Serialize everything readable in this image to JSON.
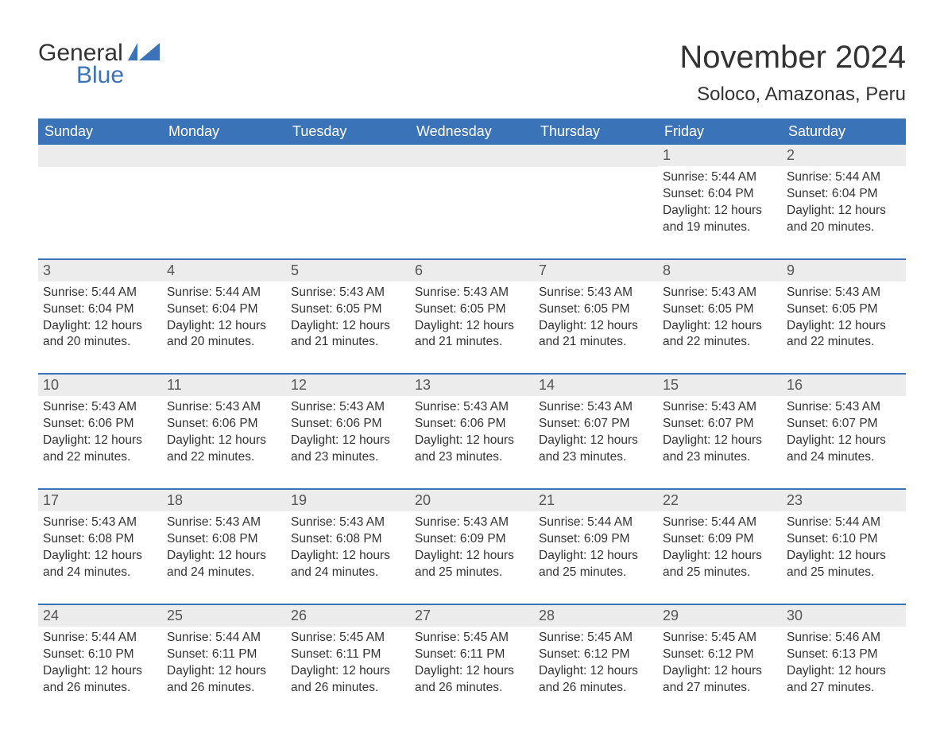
{
  "logo": {
    "word1": "General",
    "word2": "Blue"
  },
  "title": "November 2024",
  "location": "Soloco, Amazonas, Peru",
  "colors": {
    "brand_blue": "#3b73b9",
    "header_bg": "#ececec",
    "text": "#333333",
    "white": "#ffffff"
  },
  "fonts": {
    "family": "Arial",
    "title_size": 40,
    "location_size": 24,
    "weekday_size": 18,
    "daynum_size": 18,
    "body_size": 15.5
  },
  "weekdays": [
    "Sunday",
    "Monday",
    "Tuesday",
    "Wednesday",
    "Thursday",
    "Friday",
    "Saturday"
  ],
  "weeks": [
    [
      null,
      null,
      null,
      null,
      null,
      {
        "n": "1",
        "sunrise": "Sunrise: 5:44 AM",
        "sunset": "Sunset: 6:04 PM",
        "dl1": "Daylight: 12 hours",
        "dl2": "and 19 minutes."
      },
      {
        "n": "2",
        "sunrise": "Sunrise: 5:44 AM",
        "sunset": "Sunset: 6:04 PM",
        "dl1": "Daylight: 12 hours",
        "dl2": "and 20 minutes."
      }
    ],
    [
      {
        "n": "3",
        "sunrise": "Sunrise: 5:44 AM",
        "sunset": "Sunset: 6:04 PM",
        "dl1": "Daylight: 12 hours",
        "dl2": "and 20 minutes."
      },
      {
        "n": "4",
        "sunrise": "Sunrise: 5:44 AM",
        "sunset": "Sunset: 6:04 PM",
        "dl1": "Daylight: 12 hours",
        "dl2": "and 20 minutes."
      },
      {
        "n": "5",
        "sunrise": "Sunrise: 5:43 AM",
        "sunset": "Sunset: 6:05 PM",
        "dl1": "Daylight: 12 hours",
        "dl2": "and 21 minutes."
      },
      {
        "n": "6",
        "sunrise": "Sunrise: 5:43 AM",
        "sunset": "Sunset: 6:05 PM",
        "dl1": "Daylight: 12 hours",
        "dl2": "and 21 minutes."
      },
      {
        "n": "7",
        "sunrise": "Sunrise: 5:43 AM",
        "sunset": "Sunset: 6:05 PM",
        "dl1": "Daylight: 12 hours",
        "dl2": "and 21 minutes."
      },
      {
        "n": "8",
        "sunrise": "Sunrise: 5:43 AM",
        "sunset": "Sunset: 6:05 PM",
        "dl1": "Daylight: 12 hours",
        "dl2": "and 22 minutes."
      },
      {
        "n": "9",
        "sunrise": "Sunrise: 5:43 AM",
        "sunset": "Sunset: 6:05 PM",
        "dl1": "Daylight: 12 hours",
        "dl2": "and 22 minutes."
      }
    ],
    [
      {
        "n": "10",
        "sunrise": "Sunrise: 5:43 AM",
        "sunset": "Sunset: 6:06 PM",
        "dl1": "Daylight: 12 hours",
        "dl2": "and 22 minutes."
      },
      {
        "n": "11",
        "sunrise": "Sunrise: 5:43 AM",
        "sunset": "Sunset: 6:06 PM",
        "dl1": "Daylight: 12 hours",
        "dl2": "and 22 minutes."
      },
      {
        "n": "12",
        "sunrise": "Sunrise: 5:43 AM",
        "sunset": "Sunset: 6:06 PM",
        "dl1": "Daylight: 12 hours",
        "dl2": "and 23 minutes."
      },
      {
        "n": "13",
        "sunrise": "Sunrise: 5:43 AM",
        "sunset": "Sunset: 6:06 PM",
        "dl1": "Daylight: 12 hours",
        "dl2": "and 23 minutes."
      },
      {
        "n": "14",
        "sunrise": "Sunrise: 5:43 AM",
        "sunset": "Sunset: 6:07 PM",
        "dl1": "Daylight: 12 hours",
        "dl2": "and 23 minutes."
      },
      {
        "n": "15",
        "sunrise": "Sunrise: 5:43 AM",
        "sunset": "Sunset: 6:07 PM",
        "dl1": "Daylight: 12 hours",
        "dl2": "and 23 minutes."
      },
      {
        "n": "16",
        "sunrise": "Sunrise: 5:43 AM",
        "sunset": "Sunset: 6:07 PM",
        "dl1": "Daylight: 12 hours",
        "dl2": "and 24 minutes."
      }
    ],
    [
      {
        "n": "17",
        "sunrise": "Sunrise: 5:43 AM",
        "sunset": "Sunset: 6:08 PM",
        "dl1": "Daylight: 12 hours",
        "dl2": "and 24 minutes."
      },
      {
        "n": "18",
        "sunrise": "Sunrise: 5:43 AM",
        "sunset": "Sunset: 6:08 PM",
        "dl1": "Daylight: 12 hours",
        "dl2": "and 24 minutes."
      },
      {
        "n": "19",
        "sunrise": "Sunrise: 5:43 AM",
        "sunset": "Sunset: 6:08 PM",
        "dl1": "Daylight: 12 hours",
        "dl2": "and 24 minutes."
      },
      {
        "n": "20",
        "sunrise": "Sunrise: 5:43 AM",
        "sunset": "Sunset: 6:09 PM",
        "dl1": "Daylight: 12 hours",
        "dl2": "and 25 minutes."
      },
      {
        "n": "21",
        "sunrise": "Sunrise: 5:44 AM",
        "sunset": "Sunset: 6:09 PM",
        "dl1": "Daylight: 12 hours",
        "dl2": "and 25 minutes."
      },
      {
        "n": "22",
        "sunrise": "Sunrise: 5:44 AM",
        "sunset": "Sunset: 6:09 PM",
        "dl1": "Daylight: 12 hours",
        "dl2": "and 25 minutes."
      },
      {
        "n": "23",
        "sunrise": "Sunrise: 5:44 AM",
        "sunset": "Sunset: 6:10 PM",
        "dl1": "Daylight: 12 hours",
        "dl2": "and 25 minutes."
      }
    ],
    [
      {
        "n": "24",
        "sunrise": "Sunrise: 5:44 AM",
        "sunset": "Sunset: 6:10 PM",
        "dl1": "Daylight: 12 hours",
        "dl2": "and 26 minutes."
      },
      {
        "n": "25",
        "sunrise": "Sunrise: 5:44 AM",
        "sunset": "Sunset: 6:11 PM",
        "dl1": "Daylight: 12 hours",
        "dl2": "and 26 minutes."
      },
      {
        "n": "26",
        "sunrise": "Sunrise: 5:45 AM",
        "sunset": "Sunset: 6:11 PM",
        "dl1": "Daylight: 12 hours",
        "dl2": "and 26 minutes."
      },
      {
        "n": "27",
        "sunrise": "Sunrise: 5:45 AM",
        "sunset": "Sunset: 6:11 PM",
        "dl1": "Daylight: 12 hours",
        "dl2": "and 26 minutes."
      },
      {
        "n": "28",
        "sunrise": "Sunrise: 5:45 AM",
        "sunset": "Sunset: 6:12 PM",
        "dl1": "Daylight: 12 hours",
        "dl2": "and 26 minutes."
      },
      {
        "n": "29",
        "sunrise": "Sunrise: 5:45 AM",
        "sunset": "Sunset: 6:12 PM",
        "dl1": "Daylight: 12 hours",
        "dl2": "and 27 minutes."
      },
      {
        "n": "30",
        "sunrise": "Sunrise: 5:46 AM",
        "sunset": "Sunset: 6:13 PM",
        "dl1": "Daylight: 12 hours",
        "dl2": "and 27 minutes."
      }
    ]
  ]
}
